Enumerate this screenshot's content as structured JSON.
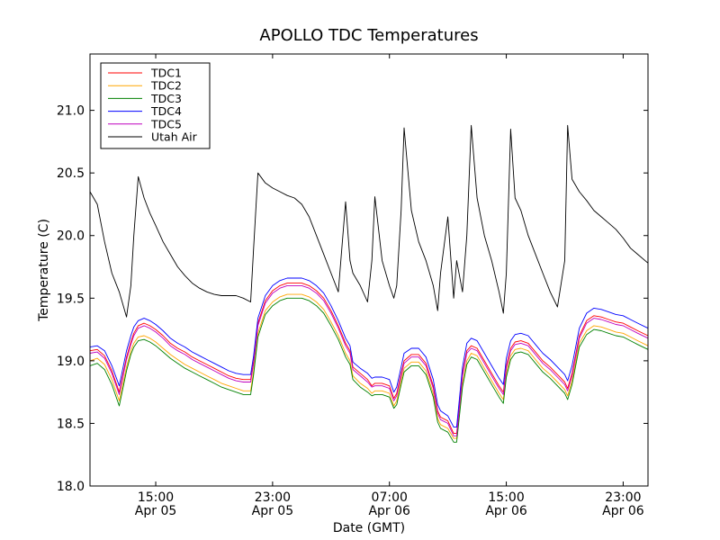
{
  "chart_data": {
    "type": "line",
    "title": "APOLLO TDC Temperatures",
    "xlabel": "Date (GMT)",
    "ylabel": "Temperature (C)",
    "grid": false,
    "legend_location": "upper-left",
    "xlim_hours": [
      10.5,
      48.7
    ],
    "ylim": [
      18.0,
      21.45
    ],
    "yticks": [
      18.0,
      18.5,
      19.0,
      19.5,
      20.0,
      20.5,
      21.0
    ],
    "ytick_labels": [
      "18.0",
      "18.5",
      "19.0",
      "19.5",
      "20.0",
      "20.5",
      "21.0"
    ],
    "xticks": [
      {
        "hour": 15,
        "line1": "15:00",
        "line2": "Apr 05"
      },
      {
        "hour": 23,
        "line1": "23:00",
        "line2": "Apr 05"
      },
      {
        "hour": 31,
        "line1": "07:00",
        "line2": "Apr 06"
      },
      {
        "hour": 39,
        "line1": "15:00",
        "line2": "Apr 06"
      },
      {
        "hour": 47,
        "line1": "23:00",
        "line2": "Apr 06"
      }
    ],
    "x_units_note": "hours since Apr 05 00:00 GMT",
    "x": [
      10.5,
      11.0,
      11.5,
      12.0,
      12.5,
      13.0,
      13.3,
      13.5,
      13.8,
      14.2,
      14.6,
      15.0,
      15.5,
      16.0,
      16.5,
      17.0,
      17.5,
      18.0,
      18.5,
      19.0,
      19.5,
      20.0,
      20.5,
      21.0,
      21.5,
      21.7,
      22.0,
      22.5,
      23.0,
      23.5,
      24.0,
      24.5,
      25.0,
      25.5,
      26.0,
      26.5,
      27.0,
      27.5,
      28.0,
      28.3,
      28.5,
      29.0,
      29.5,
      29.8,
      30.0,
      30.5,
      31.0,
      31.3,
      31.5,
      31.8,
      32.0,
      32.5,
      33.0,
      33.5,
      34.0,
      34.3,
      34.5,
      35.0,
      35.4,
      35.6,
      36.0,
      36.3,
      36.6,
      37.0,
      37.5,
      38.0,
      38.5,
      38.8,
      39.0,
      39.3,
      39.6,
      40.0,
      40.5,
      41.0,
      41.5,
      42.0,
      42.5,
      43.0,
      43.2,
      43.5,
      44.0,
      44.5,
      45.0,
      45.5,
      46.0,
      46.5,
      47.0,
      47.5,
      48.0,
      48.7
    ],
    "series": [
      {
        "name": "TDC1",
        "color": "#ff0000",
        "values": [
          19.08,
          19.09,
          19.04,
          18.92,
          18.75,
          19.03,
          19.15,
          19.22,
          19.28,
          19.3,
          19.28,
          19.25,
          19.2,
          19.14,
          19.1,
          19.07,
          19.03,
          19.0,
          18.97,
          18.94,
          18.91,
          18.88,
          18.86,
          18.85,
          18.85,
          19.0,
          19.3,
          19.48,
          19.56,
          19.6,
          19.62,
          19.62,
          19.62,
          19.6,
          19.56,
          19.5,
          19.4,
          19.28,
          19.14,
          19.08,
          18.95,
          18.9,
          18.85,
          18.8,
          18.82,
          18.82,
          18.8,
          18.7,
          18.74,
          18.9,
          19.0,
          19.05,
          19.05,
          18.98,
          18.8,
          18.6,
          18.55,
          18.52,
          18.42,
          18.42,
          18.9,
          19.08,
          19.12,
          19.1,
          19.0,
          18.9,
          18.8,
          18.75,
          18.96,
          19.1,
          19.15,
          19.16,
          19.14,
          19.07,
          19.0,
          18.95,
          18.89,
          18.83,
          18.78,
          18.9,
          19.2,
          19.32,
          19.36,
          19.35,
          19.33,
          19.31,
          19.3,
          19.27,
          19.24,
          19.2
        ]
      },
      {
        "name": "TDC2",
        "color": "#ffa500",
        "values": [
          19.0,
          19.02,
          18.97,
          18.85,
          18.68,
          18.95,
          19.08,
          19.14,
          19.19,
          19.2,
          19.18,
          19.15,
          19.1,
          19.05,
          19.01,
          18.97,
          18.94,
          18.91,
          18.88,
          18.85,
          18.82,
          18.8,
          18.78,
          18.76,
          18.76,
          18.92,
          19.22,
          19.4,
          19.47,
          19.51,
          19.53,
          19.53,
          19.53,
          19.51,
          19.47,
          19.41,
          19.31,
          19.2,
          19.06,
          19.0,
          18.88,
          18.82,
          18.78,
          18.74,
          18.76,
          18.76,
          18.74,
          18.64,
          18.68,
          18.84,
          18.94,
          18.99,
          18.99,
          18.92,
          18.74,
          18.54,
          18.49,
          18.46,
          18.38,
          18.38,
          18.82,
          19.0,
          19.06,
          19.04,
          18.94,
          18.84,
          18.74,
          18.69,
          18.9,
          19.04,
          19.09,
          19.1,
          19.08,
          19.01,
          18.94,
          18.89,
          18.83,
          18.77,
          18.72,
          18.84,
          19.14,
          19.24,
          19.28,
          19.27,
          19.25,
          19.23,
          19.22,
          19.19,
          19.16,
          19.12
        ]
      },
      {
        "name": "TDC3",
        "color": "#008000",
        "values": [
          18.96,
          18.98,
          18.93,
          18.81,
          18.64,
          18.92,
          19.05,
          19.11,
          19.16,
          19.17,
          19.15,
          19.12,
          19.07,
          19.02,
          18.98,
          18.94,
          18.91,
          18.88,
          18.85,
          18.82,
          18.79,
          18.77,
          18.75,
          18.73,
          18.73,
          18.89,
          19.19,
          19.37,
          19.44,
          19.48,
          19.5,
          19.5,
          19.5,
          19.48,
          19.44,
          19.38,
          19.28,
          19.17,
          19.03,
          18.97,
          18.85,
          18.79,
          18.75,
          18.72,
          18.73,
          18.73,
          18.71,
          18.62,
          18.65,
          18.81,
          18.91,
          18.96,
          18.96,
          18.89,
          18.71,
          18.51,
          18.46,
          18.43,
          18.35,
          18.35,
          18.79,
          18.97,
          19.03,
          19.01,
          18.91,
          18.81,
          18.71,
          18.66,
          18.87,
          19.01,
          19.06,
          19.07,
          19.05,
          18.98,
          18.91,
          18.86,
          18.8,
          18.74,
          18.69,
          18.81,
          19.11,
          19.21,
          19.25,
          19.24,
          19.22,
          19.2,
          19.19,
          19.16,
          19.13,
          19.09
        ]
      },
      {
        "name": "TDC4",
        "color": "#0000ff",
        "values": [
          19.11,
          19.12,
          19.08,
          18.96,
          18.8,
          19.08,
          19.2,
          19.27,
          19.32,
          19.34,
          19.32,
          19.29,
          19.24,
          19.18,
          19.14,
          19.11,
          19.07,
          19.04,
          19.01,
          18.98,
          18.95,
          18.92,
          18.9,
          18.89,
          18.89,
          19.04,
          19.34,
          19.52,
          19.6,
          19.64,
          19.66,
          19.66,
          19.66,
          19.64,
          19.6,
          19.54,
          19.44,
          19.32,
          19.18,
          19.12,
          18.99,
          18.94,
          18.9,
          18.86,
          18.87,
          18.87,
          18.85,
          18.75,
          18.79,
          18.95,
          19.06,
          19.1,
          19.1,
          19.03,
          18.85,
          18.65,
          18.6,
          18.56,
          18.47,
          18.47,
          18.95,
          19.14,
          19.18,
          19.16,
          19.06,
          18.96,
          18.86,
          18.81,
          19.02,
          19.16,
          19.21,
          19.22,
          19.2,
          19.13,
          19.06,
          19.01,
          18.95,
          18.89,
          18.84,
          18.96,
          19.26,
          19.38,
          19.42,
          19.41,
          19.39,
          19.37,
          19.36,
          19.33,
          19.3,
          19.26
        ]
      },
      {
        "name": "TDC5",
        "color": "#bf00bf",
        "values": [
          19.06,
          19.07,
          19.02,
          18.9,
          18.73,
          19.01,
          19.13,
          19.2,
          19.26,
          19.28,
          19.26,
          19.23,
          19.18,
          19.12,
          19.08,
          19.05,
          19.01,
          18.98,
          18.95,
          18.92,
          18.89,
          18.86,
          18.84,
          18.83,
          18.83,
          18.98,
          19.28,
          19.46,
          19.54,
          19.58,
          19.6,
          19.6,
          19.6,
          19.58,
          19.54,
          19.48,
          19.38,
          19.26,
          19.12,
          19.06,
          18.93,
          18.88,
          18.83,
          18.79,
          18.8,
          18.8,
          18.78,
          18.68,
          18.72,
          18.88,
          18.98,
          19.03,
          19.03,
          18.96,
          18.78,
          18.58,
          18.53,
          18.5,
          18.4,
          18.4,
          18.88,
          19.06,
          19.1,
          19.08,
          18.98,
          18.88,
          18.78,
          18.73,
          18.94,
          19.08,
          19.13,
          19.14,
          19.12,
          19.05,
          18.98,
          18.93,
          18.87,
          18.81,
          18.76,
          18.88,
          19.18,
          19.3,
          19.34,
          19.33,
          19.31,
          19.29,
          19.28,
          19.25,
          19.22,
          19.18
        ]
      },
      {
        "name": "Utah Air",
        "color": "#000000",
        "values": [
          20.35,
          20.25,
          19.95,
          19.7,
          19.55,
          19.35,
          19.6,
          20.0,
          20.47,
          20.3,
          20.18,
          20.08,
          19.95,
          19.85,
          19.75,
          19.68,
          19.62,
          19.58,
          19.55,
          19.53,
          19.52,
          19.52,
          19.52,
          19.5,
          19.47,
          19.9,
          20.5,
          20.42,
          20.38,
          20.35,
          20.32,
          20.3,
          20.25,
          20.15,
          20.0,
          19.85,
          19.7,
          19.55,
          20.27,
          19.8,
          19.7,
          19.6,
          19.47,
          19.8,
          20.31,
          19.8,
          19.6,
          19.5,
          19.6,
          20.2,
          20.86,
          20.2,
          19.95,
          19.8,
          19.6,
          19.4,
          19.7,
          20.15,
          19.5,
          19.8,
          19.55,
          20.0,
          20.88,
          20.3,
          20.0,
          19.8,
          19.55,
          19.38,
          19.7,
          20.85,
          20.3,
          20.2,
          20.0,
          19.85,
          19.7,
          19.55,
          19.43,
          19.8,
          20.88,
          20.45,
          20.35,
          20.28,
          20.2,
          20.15,
          20.1,
          20.05,
          19.98,
          19.9,
          19.85,
          19.78
        ]
      }
    ]
  }
}
